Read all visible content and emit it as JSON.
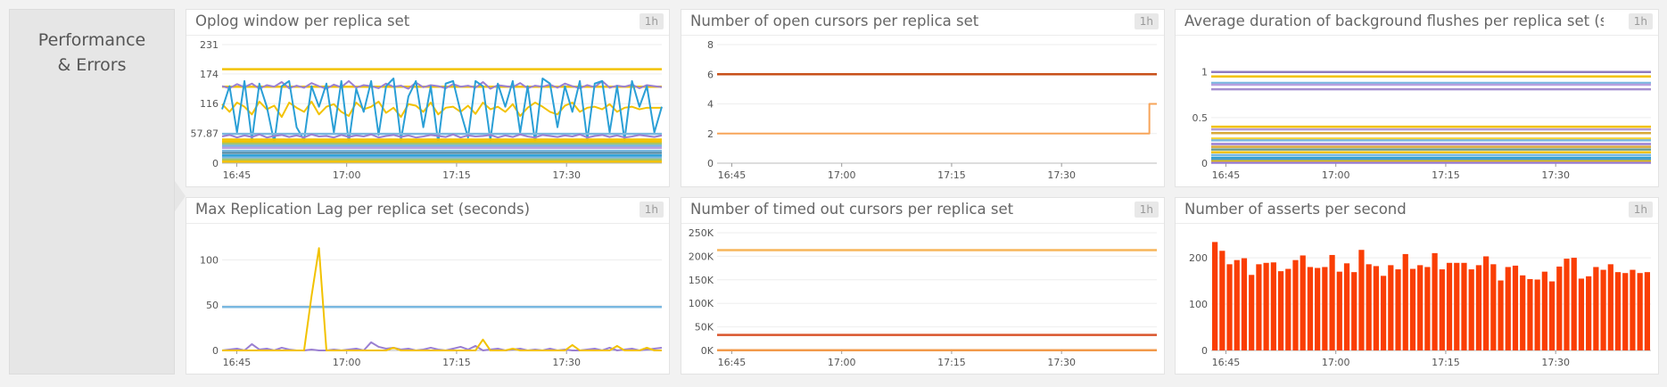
{
  "group": {
    "title_line1": "Performance",
    "title_line2": "& Errors"
  },
  "chart_data": [
    {
      "id": "oplog",
      "type": "line",
      "title": "Oplog window per replica set",
      "timeframe": "1h",
      "xlim": [
        "16:43",
        "17:43"
      ],
      "xticks": [
        "16:45",
        "17:00",
        "17:15",
        "17:30"
      ],
      "ylim": [
        0,
        231
      ],
      "yticks": [
        0,
        57.87,
        116,
        174,
        231
      ],
      "ytick_labels": [
        "0",
        "57.87",
        "116",
        "174",
        "231"
      ],
      "series": [
        {
          "color": "#f2c200",
          "value": 183
        },
        {
          "color": "#f2c200",
          "value": 149
        },
        {
          "color": "#9a7fd1",
          "values": [
            150,
            146,
            154,
            148,
            155,
            145,
            152,
            149,
            158,
            146,
            151,
            147,
            156,
            150,
            145,
            153,
            148,
            160,
            147,
            152,
            150,
            146,
            155,
            149,
            151,
            145,
            157,
            148,
            152,
            150,
            146,
            154,
            149,
            151,
            147,
            158,
            145,
            152,
            150,
            148,
            156,
            146,
            151,
            149,
            153,
            147,
            155,
            150,
            146,
            152,
            148,
            160,
            147,
            151,
            149,
            153,
            146,
            152,
            150,
            148
          ]
        },
        {
          "color": "#f2c200",
          "values": [
            115,
            100,
            118,
            110,
            95,
            120,
            105,
            112,
            90,
            118,
            108,
            100,
            120,
            95,
            110,
            115,
            100,
            92,
            118,
            105,
            110,
            120,
            98,
            108,
            90,
            115,
            112,
            100,
            118,
            95,
            108,
            110,
            100,
            112,
            96,
            118,
            105,
            110,
            100,
            115,
            92,
            108,
            118,
            110,
            100,
            95,
            112,
            118,
            100,
            108,
            110,
            105,
            115,
            100,
            108,
            110,
            105,
            108,
            108,
            108
          ]
        },
        {
          "color": "#2a9fd6",
          "values": [
            105,
            150,
            60,
            160,
            45,
            155,
            110,
            40,
            150,
            160,
            70,
            45,
            150,
            110,
            155,
            60,
            160,
            40,
            145,
            100,
            160,
            55,
            150,
            165,
            45,
            130,
            160,
            70,
            150,
            40,
            155,
            160,
            100,
            50,
            160,
            150,
            45,
            155,
            110,
            160,
            60,
            150,
            40,
            165,
            155,
            70,
            150,
            100,
            160,
            45,
            155,
            160,
            60,
            150,
            45,
            160,
            110,
            150,
            60,
            110
          ]
        },
        {
          "color": "#7ab8e0",
          "value": 57
        },
        {
          "color": "#9a7fd1",
          "values": [
            52,
            55,
            50,
            54,
            51,
            56,
            50,
            53,
            55,
            51,
            54,
            50,
            56,
            52,
            53,
            50,
            55,
            51,
            54,
            52,
            56,
            50,
            53,
            55,
            51,
            54,
            50,
            52,
            55,
            53,
            51,
            56,
            50,
            54,
            52,
            53,
            55,
            50,
            54,
            51,
            56,
            52,
            50,
            55,
            53,
            51,
            54,
            52,
            56,
            50,
            53,
            55,
            51,
            54,
            50,
            52,
            55,
            53,
            51,
            54
          ]
        },
        {
          "color": "#f2c200",
          "value": 46
        },
        {
          "color": "#f2c200",
          "value": 42
        },
        {
          "color": "#a5c46b",
          "value": 38
        },
        {
          "color": "#7ab8e0",
          "value": 34
        },
        {
          "color": "#b8a0e0",
          "value": 30
        },
        {
          "color": "#7ab8e0",
          "value": 24
        },
        {
          "color": "#5a8fa8",
          "value": 20
        },
        {
          "color": "#2a9fd6",
          "value": 15
        },
        {
          "color": "#7ab8e0",
          "value": 11
        },
        {
          "color": "#a5c46b",
          "value": 7
        },
        {
          "color": "#f2c200",
          "value": 3
        }
      ]
    },
    {
      "id": "open-cursors",
      "type": "line",
      "title": "Number of open cursors per replica set",
      "timeframe": "1h",
      "xlim": [
        "16:43",
        "17:43"
      ],
      "xticks": [
        "16:45",
        "17:00",
        "17:15",
        "17:30"
      ],
      "ylim": [
        0,
        8
      ],
      "yticks": [
        0,
        2,
        4,
        6,
        8
      ],
      "ytick_labels": [
        "0",
        "2",
        "4",
        "6",
        "8"
      ],
      "series": [
        {
          "color": "#c8501a",
          "value": 6
        },
        {
          "color": "#f7a55a",
          "values": [
            2,
            2,
            2,
            2,
            2,
            2,
            2,
            2,
            2,
            2,
            2,
            2,
            2,
            2,
            2,
            2,
            2,
            2,
            2,
            2,
            2,
            2,
            2,
            2,
            2,
            2,
            2,
            2,
            2,
            2,
            2,
            2,
            2,
            2,
            2,
            2,
            2,
            2,
            2,
            2,
            2,
            2,
            2,
            2,
            2,
            2,
            2,
            2,
            2,
            2,
            2,
            2,
            2,
            2,
            2,
            2,
            2,
            2,
            4,
            4
          ],
          "step": true
        }
      ]
    },
    {
      "id": "flushes",
      "type": "line",
      "title": "Average duration of background flushes per replica set (se...",
      "timeframe": "1h",
      "xlim": [
        "16:43",
        "17:43"
      ],
      "xticks": [
        "16:45",
        "17:00",
        "17:15",
        "17:30"
      ],
      "ylim": [
        0,
        1.3
      ],
      "yticks": [
        0,
        0.5,
        1
      ],
      "ytick_labels": [
        "0",
        "0.5",
        "1"
      ],
      "series": [
        {
          "color": "#8f7bc0",
          "value": 1.0
        },
        {
          "color": "#f2c200",
          "value": 0.95
        },
        {
          "color": "#7ab8e0",
          "value": 0.88
        },
        {
          "color": "#b8a0e0",
          "value": 0.86
        },
        {
          "color": "#a58fd0",
          "value": 0.81
        },
        {
          "color": "#f2c200",
          "value": 0.4
        },
        {
          "color": "#b39ad6",
          "value": 0.37
        },
        {
          "color": "#d8a93a",
          "value": 0.33
        },
        {
          "color": "#f2d23a",
          "value": 0.27
        },
        {
          "color": "#7ab8e0",
          "value": 0.25
        },
        {
          "color": "#9a7fd1",
          "value": 0.21
        },
        {
          "color": "#d8a93a",
          "value": 0.18
        },
        {
          "color": "#6b9a8a",
          "value": 0.15
        },
        {
          "color": "#f2c200",
          "value": 0.12
        },
        {
          "color": "#7ab8e0",
          "value": 0.09
        },
        {
          "color": "#2a9fd6",
          "value": 0.06
        },
        {
          "color": "#5aa0c0",
          "value": 0.04
        },
        {
          "color": "#f2c200",
          "value": 0.02
        },
        {
          "color": "#9a7fd1",
          "value": 0.005
        }
      ]
    },
    {
      "id": "replication-lag",
      "type": "line",
      "title": "Max Replication Lag per replica set (seconds)",
      "timeframe": "1h",
      "xlim": [
        "16:43",
        "17:43"
      ],
      "xticks": [
        "16:45",
        "17:00",
        "17:15",
        "17:30"
      ],
      "ylim": [
        0,
        130
      ],
      "yticks": [
        0,
        50,
        100
      ],
      "ytick_labels": [
        "0",
        "50",
        "100"
      ],
      "series": [
        {
          "color": "#7ab8e0",
          "value": 48
        },
        {
          "color": "#9a7fd1",
          "values": [
            0,
            1,
            2,
            0,
            7,
            1,
            2,
            0,
            3,
            1,
            0,
            0,
            1,
            0,
            0,
            1,
            0,
            1,
            2,
            0,
            9,
            4,
            2,
            3,
            1,
            2,
            0,
            1,
            3,
            1,
            0,
            2,
            4,
            1,
            5,
            0,
            1,
            2,
            0,
            1,
            2,
            0,
            1,
            0,
            2,
            0,
            1,
            0,
            0,
            1,
            2,
            0,
            3,
            0,
            1,
            2,
            0,
            1,
            2,
            3
          ]
        },
        {
          "color": "#f2c200",
          "values": [
            0,
            0,
            0,
            0,
            0,
            0,
            0,
            0,
            0,
            0,
            0,
            0,
            60,
            113,
            0,
            0,
            0,
            0,
            0,
            0,
            0,
            0,
            0,
            3,
            0,
            0,
            0,
            0,
            0,
            0,
            0,
            0,
            0,
            0,
            0,
            12,
            0,
            0,
            0,
            2,
            0,
            0,
            0,
            0,
            0,
            0,
            0,
            6,
            0,
            0,
            0,
            0,
            0,
            5,
            0,
            0,
            0,
            3,
            0,
            0
          ]
        }
      ]
    },
    {
      "id": "timed-out-cursors",
      "type": "line",
      "title": "Number of timed out cursors per replica set",
      "timeframe": "1h",
      "xlim": [
        "16:43",
        "17:43"
      ],
      "xticks": [
        "16:45",
        "17:00",
        "17:15",
        "17:30"
      ],
      "ylim": [
        0,
        250000
      ],
      "yticks": [
        0,
        50000,
        100000,
        150000,
        200000,
        250000
      ],
      "ytick_labels": [
        "0K",
        "50K",
        "100K",
        "150K",
        "200K",
        "250K"
      ],
      "series": [
        {
          "color": "#f7b55a",
          "value": 213000
        },
        {
          "color": "#d9542b",
          "value": 33000
        },
        {
          "color": "#f2994a",
          "value": 500
        }
      ]
    },
    {
      "id": "asserts",
      "type": "bar",
      "title": "Number of asserts per second",
      "timeframe": "1h",
      "xlim": [
        "16:43",
        "17:43"
      ],
      "xticks": [
        "16:45",
        "17:00",
        "17:15",
        "17:30"
      ],
      "ylim": [
        0,
        254
      ],
      "yticks": [
        0,
        100,
        200
      ],
      "ytick_labels": [
        "0",
        "100",
        "200"
      ],
      "bar_color": "#fa3e05",
      "values": [
        234,
        215,
        186,
        195,
        199,
        163,
        186,
        189,
        190,
        171,
        176,
        195,
        205,
        180,
        178,
        180,
        206,
        170,
        188,
        169,
        217,
        186,
        182,
        161,
        184,
        175,
        208,
        176,
        184,
        180,
        210,
        175,
        189,
        189,
        189,
        175,
        184,
        203,
        186,
        151,
        180,
        183,
        162,
        154,
        153,
        170,
        149,
        181,
        198,
        200,
        155,
        160,
        180,
        174,
        186,
        169,
        167,
        174,
        167,
        169
      ]
    }
  ]
}
